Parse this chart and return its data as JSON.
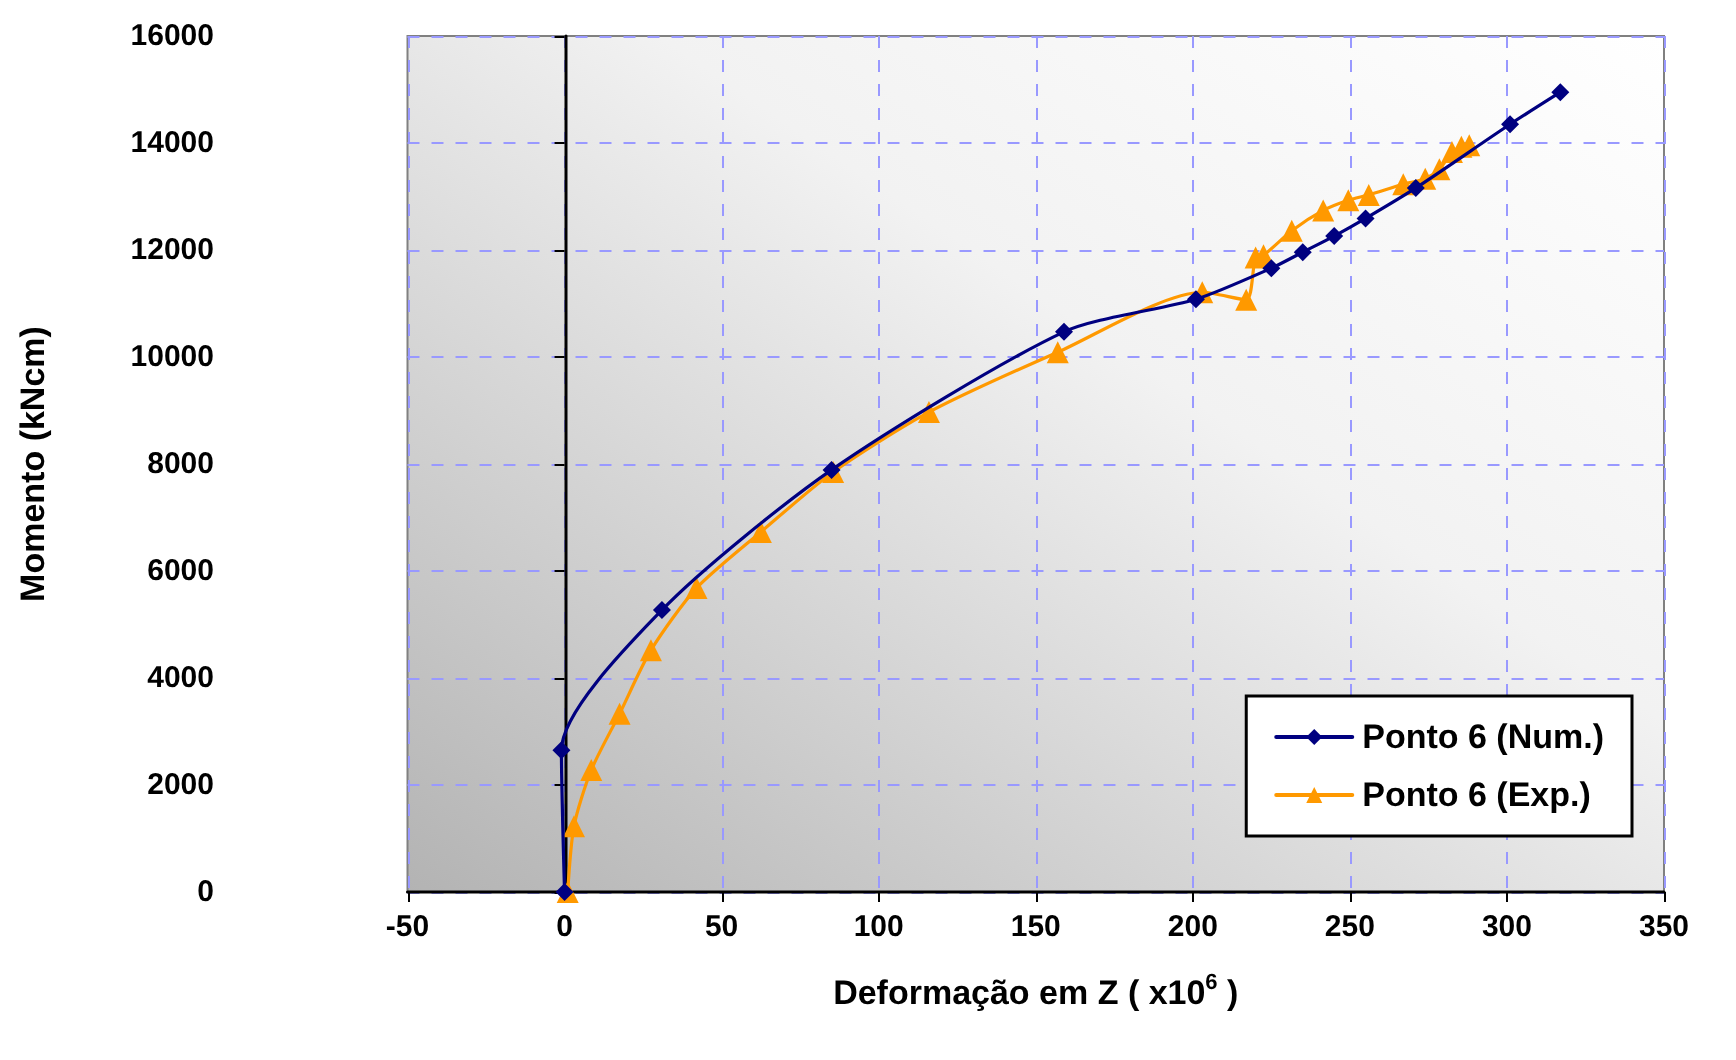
{
  "chart_data": {
    "type": "line",
    "xlabel": "Deformação em Z ( x10$^{6}$ )",
    "ylabel": "Momento (kNcm)",
    "series": [
      {
        "name": "Ponto 6 (Num.)",
        "color": "#000080",
        "marker": "diamond",
        "x": [
          0,
          -1,
          31,
          85,
          159,
          201,
          225,
          235,
          245,
          255,
          271,
          301,
          317
        ],
        "values": [
          0,
          2650,
          5270,
          7890,
          10470,
          11080,
          11660,
          11960,
          12260,
          12590,
          13160,
          14350,
          14950
        ]
      },
      {
        "name": "Ponto 6 (Exp.)",
        "color": "#ff9900",
        "marker": "triangle",
        "x": [
          1,
          3,
          8.5,
          17.5,
          27.5,
          42,
          62.5,
          85.5,
          116,
          157,
          203,
          217,
          220,
          222.5,
          231.5,
          241.5,
          249.5,
          256,
          267,
          274,
          278.5,
          282.5,
          285.5,
          288
        ],
        "values": [
          0,
          1230,
          2280,
          3330,
          4520,
          5680,
          6730,
          7850,
          8970,
          10090,
          11210,
          11070,
          11860,
          11900,
          12360,
          12740,
          12930,
          13030,
          13230,
          13330,
          13510,
          13830,
          13930,
          13960
        ]
      }
    ],
    "xlim": [
      -50,
      350
    ],
    "xticks": [
      -50,
      0,
      50,
      100,
      150,
      200,
      250,
      300,
      350
    ],
    "ylim": [
      0,
      16000
    ],
    "yticks": [
      0,
      2000,
      4000,
      6000,
      8000,
      10000,
      12000,
      14000,
      16000
    ],
    "grid": true,
    "legend": "bottom right",
    "line_style": "solid"
  }
}
